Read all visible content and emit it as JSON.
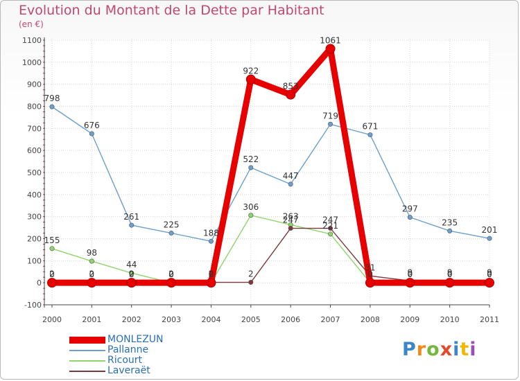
{
  "chart_data": {
    "type": "line",
    "title": "Evolution du Montant de la Dette par Habitant",
    "subtitle": "(en €)",
    "xlabel": "",
    "ylabel": "",
    "categories": [
      "2000",
      "2001",
      "2002",
      "2003",
      "2004",
      "2005",
      "2006",
      "2007",
      "2008",
      "2009",
      "2010",
      "2011"
    ],
    "ylim": [
      -100,
      1100
    ],
    "yticks": [
      -100,
      0,
      100,
      200,
      300,
      400,
      500,
      600,
      700,
      800,
      900,
      1000,
      1100
    ],
    "grid": true,
    "legend_position": "bottom-left",
    "series": [
      {
        "name": "MONLEZUN",
        "color": "#e60000",
        "values": [
          0,
          0,
          0,
          0,
          0,
          922,
          853,
          1061,
          0,
          0,
          0,
          0
        ],
        "labels": [
          "0",
          "0",
          "0",
          "0",
          "0",
          "922",
          "853",
          "1061",
          "0",
          "0",
          "0",
          "0"
        ]
      },
      {
        "name": "Pallanne",
        "color": "#6a9fd0",
        "values": [
          798,
          676,
          261,
          225,
          188,
          522,
          447,
          719,
          671,
          297,
          235,
          201
        ],
        "labels": [
          "798",
          "676",
          "261",
          "225",
          "188",
          "522",
          "447",
          "719",
          "671",
          "297",
          "235",
          "201"
        ]
      },
      {
        "name": "Ricourt",
        "color": "#8ed56a",
        "values": [
          155,
          98,
          44,
          0,
          0,
          306,
          263,
          221,
          0,
          0,
          0,
          0
        ],
        "labels": [
          "155",
          "98",
          "44",
          "0",
          "0",
          "306",
          "263",
          "221",
          "0",
          "0",
          "0",
          "0"
        ]
      },
      {
        "name": "Laveraët",
        "color": "#7a3a3a",
        "values": [
          2,
          2,
          2,
          2,
          2,
          2,
          247,
          247,
          31,
          9,
          9,
          9
        ],
        "labels": [
          "2",
          "2",
          "2",
          "2",
          "2",
          "2",
          "247",
          "247",
          "31",
          "9",
          "9",
          "9"
        ]
      }
    ]
  },
  "branding": {
    "letters": [
      "P",
      "r",
      "o",
      "x",
      "i",
      "t",
      "i"
    ]
  }
}
